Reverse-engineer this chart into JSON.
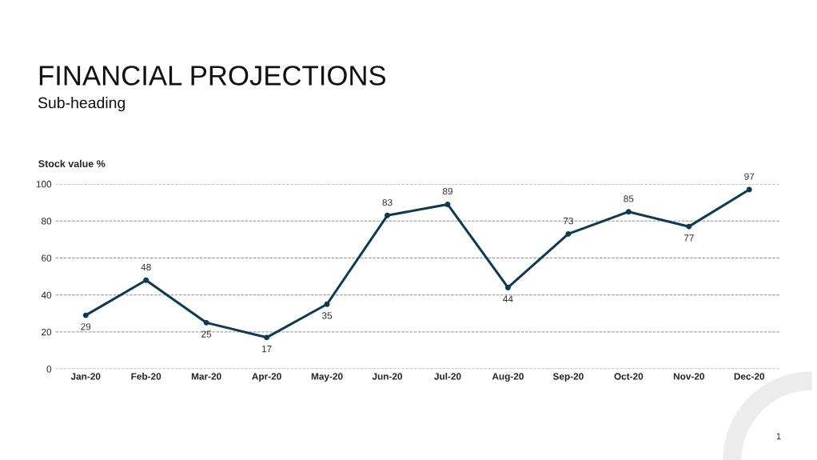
{
  "chart_data": {
    "type": "line",
    "title": "FINANCIAL PROJECTIONS",
    "subtitle": "Sub-heading",
    "ylabel": "Stock value %",
    "categories": [
      "Jan-20",
      "Feb-20",
      "Mar-20",
      "Apr-20",
      "May-20",
      "Jun-20",
      "Jul-20",
      "Aug-20",
      "Sep-20",
      "Oct-20",
      "Nov-20",
      "Dec-20"
    ],
    "series": [
      {
        "color": "#0e3a52",
        "values": [
          29,
          48,
          25,
          17,
          35,
          83,
          89,
          44,
          73,
          85,
          77,
          97
        ]
      }
    ],
    "ylim": [
      0,
      100
    ],
    "yticks": [
      0,
      20,
      40,
      60,
      80,
      100
    ],
    "grid": "y",
    "marker": "circle",
    "line_style": "solid",
    "data_labels": true,
    "legend": false,
    "annotations": [
      "1"
    ]
  }
}
